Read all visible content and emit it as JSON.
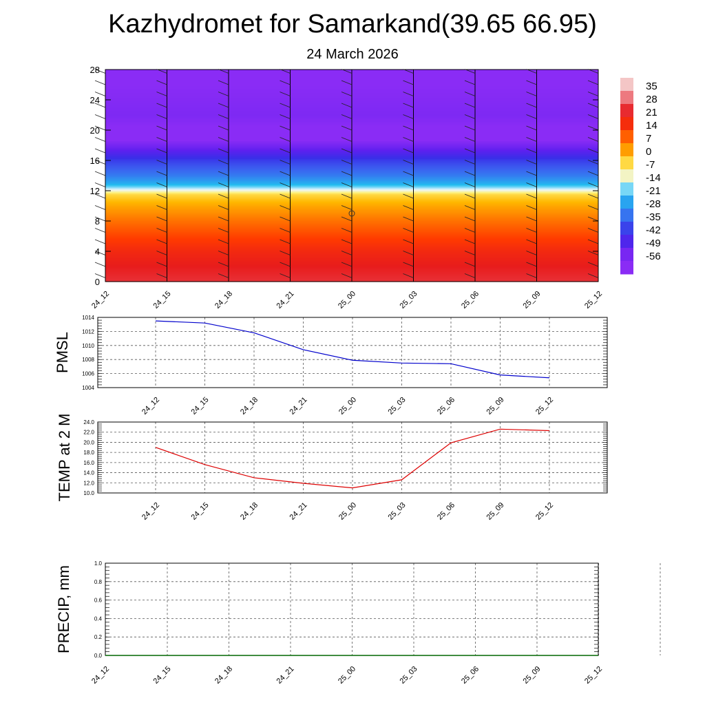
{
  "header": {
    "title": "Kazhydromet for Samarkand(39.65 66.95)",
    "date": "24 March 2026"
  },
  "chart_data": [
    {
      "id": "temperature-cross-section",
      "type": "heatmap",
      "title": "Kazhydromet for Samarkand(39.65 66.95)",
      "subtitle": "24 March 2026",
      "x": [
        "24_12",
        "24_15",
        "24_18",
        "24_21",
        "25_00",
        "25_03",
        "25_06",
        "25_09",
        "25_12"
      ],
      "yticks": [
        0,
        4,
        8,
        12,
        16,
        20,
        24,
        28
      ],
      "ylim": [
        0,
        28
      ],
      "color_levels": [
        35,
        28,
        21,
        14,
        7,
        0,
        -7,
        -14,
        -21,
        -28,
        -35,
        -42,
        -49,
        -56
      ],
      "color_stops": [
        "#f4c6c6",
        "#e8404a",
        "#e81c1c",
        "#ff3a00",
        "#ff7a00",
        "#ffb800",
        "#fff176",
        "#eaf6ff",
        "#22c0f0",
        "#2f8ff0",
        "#3b60f0",
        "#3a2ee8",
        "#5f20ef",
        "#8a2cf5"
      ],
      "profile_levels": [
        0,
        2,
        4,
        6,
        8,
        10,
        11.5,
        12.2,
        13,
        14,
        16,
        17.5,
        19,
        22,
        28
      ],
      "profile_values": [
        25,
        21,
        18,
        13,
        8,
        2,
        -4,
        -15,
        -24,
        -31,
        -40,
        -50,
        -58,
        -54,
        -57
      ]
    },
    {
      "id": "pmsl",
      "type": "line",
      "ylabel": "PMSL",
      "x": [
        "24_12",
        "24_15",
        "24_18",
        "24_21",
        "25_00",
        "25_03",
        "25_06",
        "25_09",
        "25_12"
      ],
      "series": [
        {
          "name": "PMSL",
          "color": "#0000cc",
          "values": [
            1013.5,
            1013.2,
            1011.8,
            1009.4,
            1007.9,
            1007.5,
            1007.4,
            1005.8,
            1005.4
          ]
        }
      ],
      "ylim": [
        1004,
        1014
      ],
      "yticks": [
        "1004",
        "1006",
        "1008",
        "1010",
        "1012",
        "1014"
      ]
    },
    {
      "id": "temp2m",
      "type": "line",
      "ylabel": "TEMP at 2 M",
      "x": [
        "24_12",
        "24_15",
        "24_18",
        "24_21",
        "25_00",
        "25_03",
        "25_06",
        "25_09",
        "25_12"
      ],
      "series": [
        {
          "name": "TEMP",
          "color": "#dd0000",
          "values": [
            19.0,
            15.6,
            13.0,
            11.9,
            11.0,
            12.6,
            19.9,
            22.6,
            22.3
          ]
        }
      ],
      "ylim": [
        10,
        24
      ],
      "yticks": [
        "10.0",
        "12.0",
        "14.0",
        "16.0",
        "18.0",
        "20.0",
        "22.0",
        "24.0"
      ]
    },
    {
      "id": "precip",
      "type": "line",
      "ylabel": "PRECIP, mm",
      "x": [
        "24_12",
        "24_15",
        "24_18",
        "24_21",
        "25_00",
        "25_03",
        "25_06",
        "25_09",
        "25_12"
      ],
      "series": [
        {
          "name": "PRECIP",
          "color": "#006600",
          "values": [
            0,
            0,
            0,
            0,
            0,
            0,
            0,
            0,
            0
          ]
        }
      ],
      "ylim": [
        0,
        1
      ],
      "yticks": [
        "0.0",
        "0.2",
        "0.4",
        "0.6",
        "0.8",
        "1.0"
      ]
    }
  ]
}
